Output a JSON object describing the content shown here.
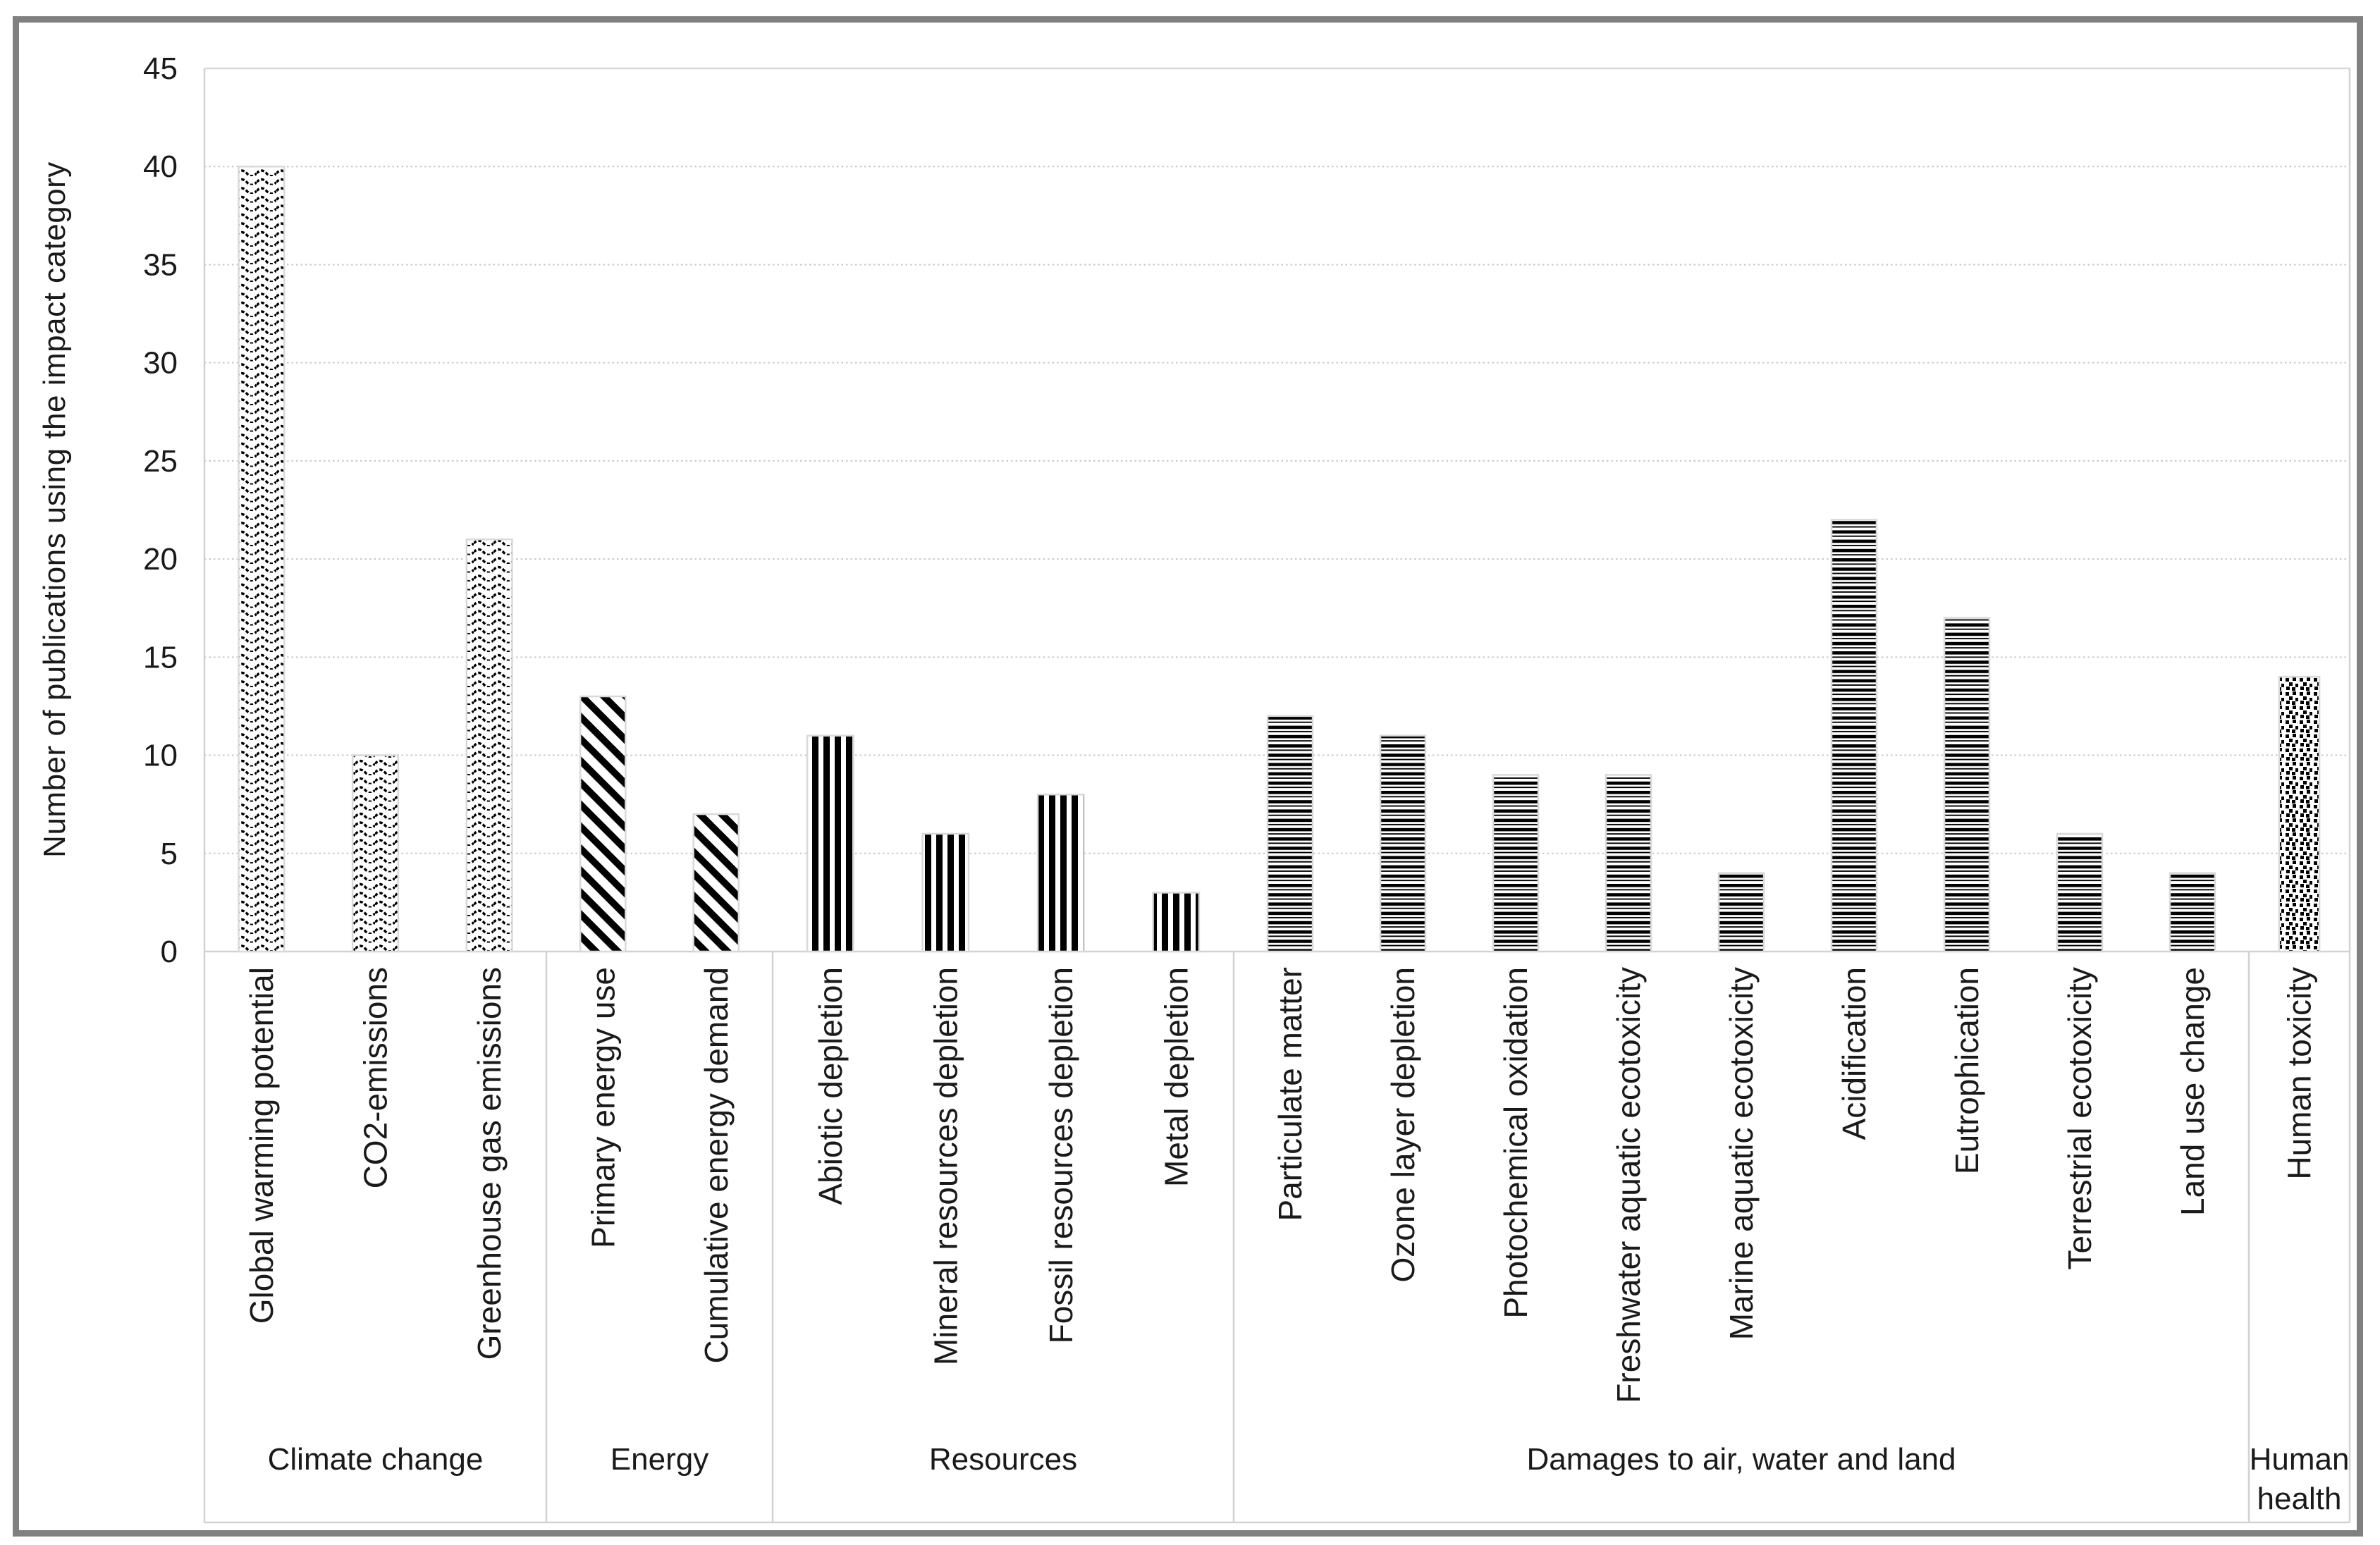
{
  "figure": {
    "frame_color": "#808080",
    "background": "#ffffff"
  },
  "chart_data": {
    "type": "bar",
    "title": "",
    "xlabel": "",
    "ylabel": "Number of publications using the impact category",
    "ylim": [
      0,
      45
    ],
    "ytick_step": 5,
    "yticks": [
      0,
      5,
      10,
      15,
      20,
      25,
      30,
      35,
      40,
      45
    ],
    "grid": "horizontal dotted gridlines every 5",
    "legend": "none",
    "bar_style": "black-and-white pattern fills, one pattern per category group",
    "groups": [
      {
        "label": "Climate change",
        "pattern": "wave",
        "categories": [
          "Global warming potential",
          "CO2-emissions",
          "Greenhouse gas emissions"
        ],
        "values": [
          40,
          10,
          21
        ]
      },
      {
        "label": "Energy",
        "pattern": "diagonal-stripes",
        "categories": [
          "Primary energy use",
          "Cumulative energy demand"
        ],
        "values": [
          13,
          7
        ]
      },
      {
        "label": "Resources",
        "pattern": "vertical-stripes",
        "categories": [
          "Abiotic depletion",
          "Mineral resources depletion",
          "Fossil resources depletion",
          "Metal depletion"
        ],
        "values": [
          11,
          6,
          8,
          3
        ]
      },
      {
        "label": "Damages to air, water and land",
        "pattern": "horizontal-stripes",
        "categories": [
          "Particulate matter",
          "Ozone layer depletion",
          "Photochemical oxidation",
          "Freshwater aquatic ecotoxicity",
          "Marine aquatic ecotoxicity",
          "Acidification",
          "Eutrophication",
          "Terrestrial ecotoxicity",
          "Land use change"
        ],
        "values": [
          12,
          11,
          9,
          9,
          4,
          22,
          17,
          6,
          4
        ]
      },
      {
        "label": "Human health",
        "label_lines": [
          "Human",
          "health"
        ],
        "pattern": "dots",
        "categories": [
          "Human toxicity"
        ],
        "values": [
          14
        ]
      }
    ],
    "colors": {
      "pattern_ink": "#000000",
      "bar_outline": "#d9d9d9",
      "gridline": "#c6c6c6",
      "axis_line": "#d9d9d9",
      "cell_border": "#d2d2d2",
      "text": "#1a1a1a"
    }
  }
}
